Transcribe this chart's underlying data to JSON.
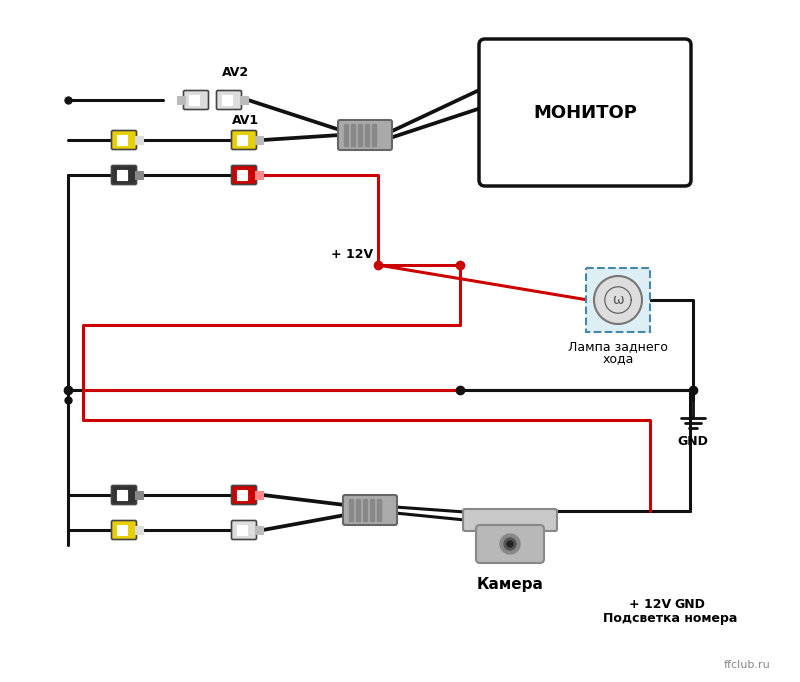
{
  "bg_color": "#ffffff",
  "wire_black": "#111111",
  "wire_red": "#cc0000",
  "col_yellow": "#e8d000",
  "col_red": "#cc0000",
  "col_black": "#222222",
  "col_gray": "#cccccc",
  "col_white": "#eeeeee",
  "monitor_label": "МОНИТОР",
  "lamp_label1": "Лампа заднего",
  "lamp_label2": "хода",
  "gnd_label": "GND",
  "camera_label": "Камера",
  "numlight_label": "Подсветка номера",
  "plus12v_label": "+ 12V",
  "plus12v_label2": "+ 12V",
  "gnd_label2": "GND",
  "av1_label": "AV1",
  "av2_label": "AV2",
  "ffclub": "ffclub.ru",
  "lw": 2.2
}
